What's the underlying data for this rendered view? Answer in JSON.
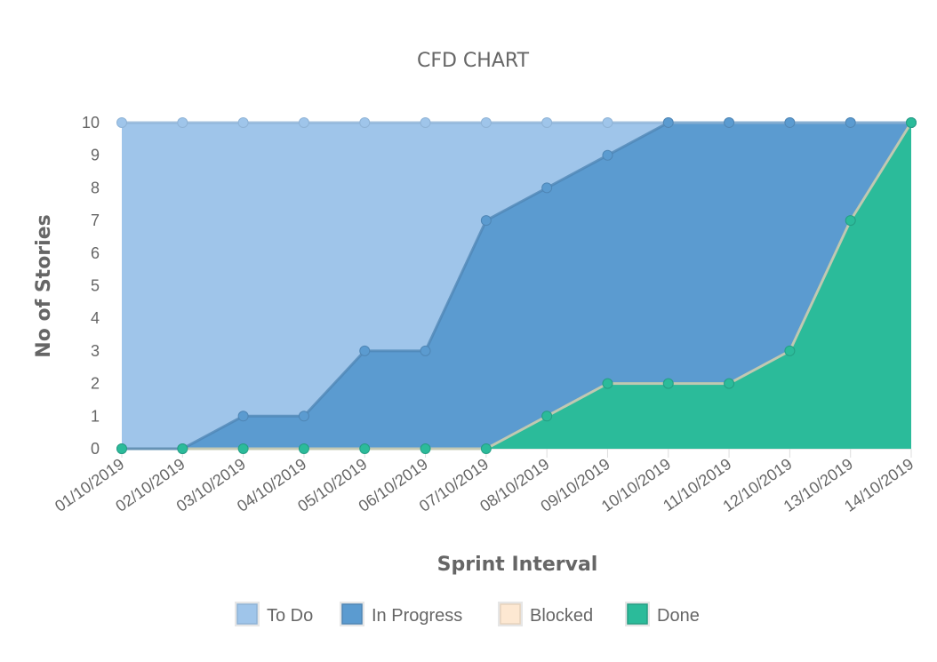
{
  "chart_data": {
    "type": "area",
    "stacked": true,
    "title": "CFD CHART",
    "xlabel": "Sprint Interval",
    "ylabel": "No of Stories",
    "ylim": [
      0,
      10
    ],
    "yticks": [
      "0",
      "1",
      "2",
      "3",
      "4",
      "5",
      "6",
      "7",
      "8",
      "9",
      "10"
    ],
    "categories": [
      "01/10/2019",
      "02/10/2019",
      "03/10/2019",
      "04/10/2019",
      "05/10/2019",
      "06/10/2019",
      "07/10/2019",
      "08/10/2019",
      "09/10/2019",
      "10/10/2019",
      "11/10/2019",
      "12/10/2019",
      "13/10/2019",
      "14/10/2019"
    ],
    "legend_position": "bottom",
    "series": [
      {
        "name": "Done",
        "color": "#2bbb9a",
        "line": "#259e83",
        "values": [
          0,
          0,
          0,
          0,
          0,
          0,
          0,
          1,
          2,
          2,
          2,
          3,
          7,
          10
        ]
      },
      {
        "name": "Blocked",
        "color": "#fde8d2",
        "line": "#e6d2bc",
        "values": [
          0,
          0,
          0,
          0,
          0,
          0,
          0,
          0,
          0,
          0,
          0,
          0,
          0,
          0
        ]
      },
      {
        "name": "In Progress",
        "color": "#5b9bd0",
        "line": "#4f86b5",
        "values": [
          0,
          0,
          1,
          1,
          3,
          3,
          7,
          7,
          7,
          8,
          8,
          7,
          3,
          0
        ]
      },
      {
        "name": "To Do",
        "color": "#9fc5ea",
        "line": "#8fb3d6",
        "values": [
          10,
          10,
          9,
          9,
          7,
          7,
          3,
          2,
          1,
          0,
          0,
          0,
          0,
          0
        ]
      }
    ],
    "legend_order": [
      "To Do",
      "In Progress",
      "Blocked",
      "Done"
    ]
  }
}
